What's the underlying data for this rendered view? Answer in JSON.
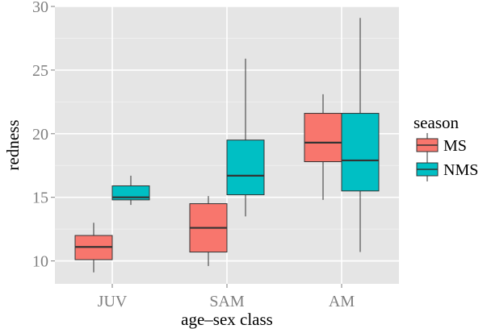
{
  "chart_data": {
    "type": "boxplot",
    "xlabel": "age–sex class",
    "ylabel": "redness",
    "categories": [
      "JUV",
      "SAM",
      "AM"
    ],
    "ylim": [
      8.2,
      30
    ],
    "yticks": [
      10,
      15,
      20,
      25,
      30
    ],
    "grid": true,
    "legend_position": "right",
    "legend_title": "season",
    "series": [
      {
        "name": "MS",
        "color": "#F8766D",
        "boxes": [
          {
            "category": "JUV",
            "min": 9.1,
            "q1": 10.1,
            "median": 11.1,
            "q3": 12.0,
            "max": 13.0
          },
          {
            "category": "SAM",
            "min": 9.6,
            "q1": 10.7,
            "median": 12.6,
            "q3": 14.5,
            "max": 15.1
          },
          {
            "category": "AM",
            "min": 14.8,
            "q1": 17.8,
            "median": 19.3,
            "q3": 21.6,
            "max": 23.1
          }
        ]
      },
      {
        "name": "NMS",
        "color": "#00BFC4",
        "boxes": [
          {
            "category": "JUV",
            "min": 14.4,
            "q1": 14.8,
            "median": 15.0,
            "q3": 15.9,
            "max": 16.7
          },
          {
            "category": "SAM",
            "min": 13.5,
            "q1": 15.2,
            "median": 16.7,
            "q3": 19.5,
            "max": 25.9
          },
          {
            "category": "AM",
            "min": 10.7,
            "q1": 15.5,
            "median": 17.9,
            "q3": 21.6,
            "max": 29.1
          }
        ]
      }
    ]
  }
}
